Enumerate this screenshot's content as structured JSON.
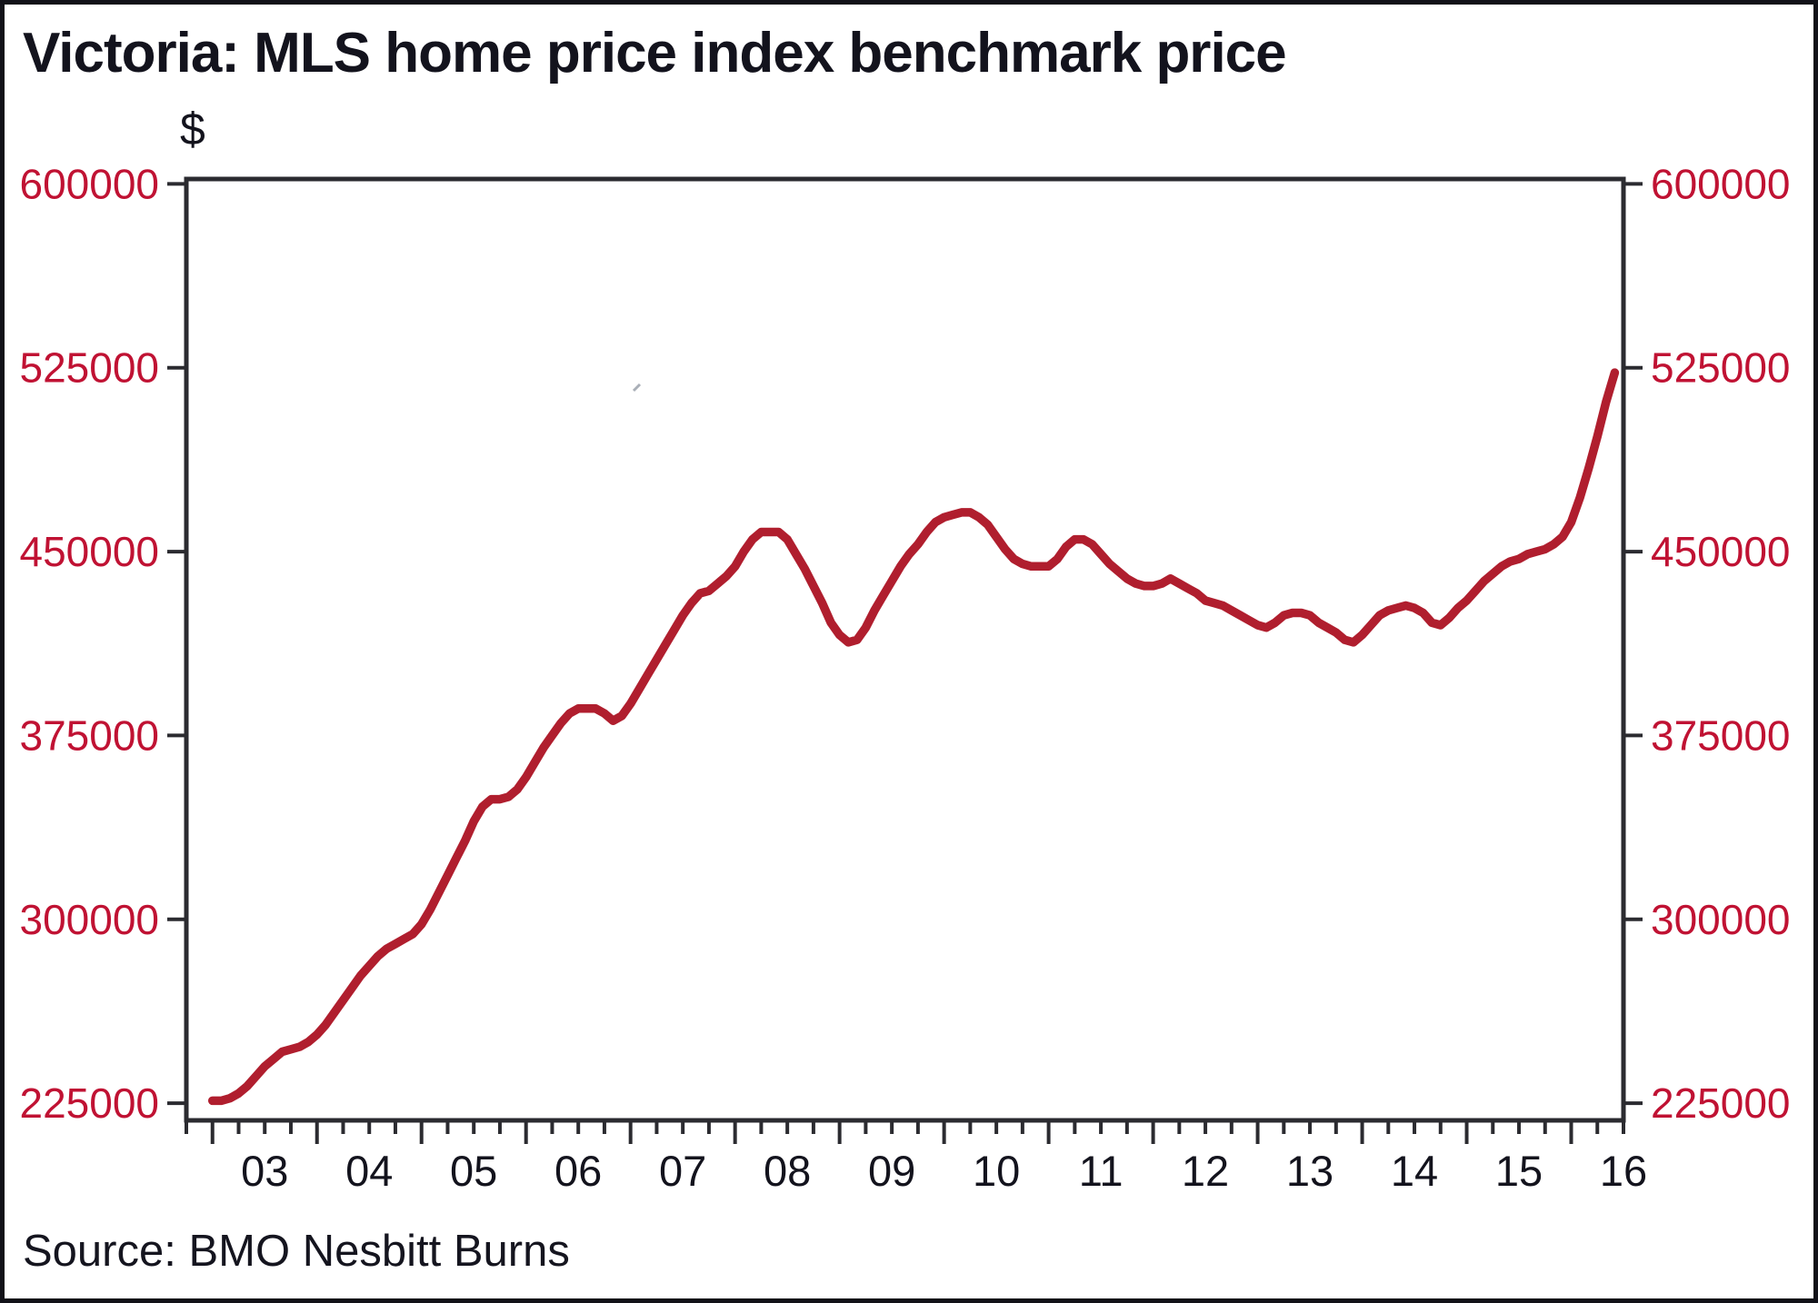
{
  "title": "Victoria: MLS home price index benchmark price",
  "source_line": "Source: BMO Nesbitt Burns",
  "colors": {
    "line": "#b01e2e",
    "axis_label_red": "#c01233",
    "text_dark": "#13131d",
    "frame": "#2b2b30",
    "background": "#ffffff"
  },
  "chart_data": {
    "type": "line",
    "title": "Victoria: MLS home price index benchmark price",
    "unit_label": "$",
    "xlabel": "",
    "ylabel": "$",
    "legend": "none",
    "grid": false,
    "source": "Source: BMO Nesbitt Burns",
    "frequency": "monthly",
    "start": "2003-01",
    "end": "2016-06",
    "x_domain": [
      2002.75,
      2016.5
    ],
    "y_domain": [
      218000,
      602000
    ],
    "y_ticks": [
      225000,
      300000,
      375000,
      450000,
      525000,
      600000
    ],
    "y_tick_labels": [
      "225000",
      "300000",
      "375000",
      "450000",
      "525000",
      "600000"
    ],
    "x_tick_years": [
      2003,
      2004,
      2005,
      2006,
      2007,
      2008,
      2009,
      2010,
      2011,
      2012,
      2013,
      2014,
      2015,
      2016
    ],
    "x_labels": [
      "03",
      "04",
      "05",
      "06",
      "07",
      "08",
      "09",
      "10",
      "11",
      "12",
      "13",
      "14",
      "15",
      "16"
    ],
    "x_minor_tick_step_years": 0.25,
    "values": [
      226000,
      226000,
      227000,
      229000,
      232000,
      236000,
      240000,
      243000,
      246000,
      247000,
      248000,
      250000,
      253000,
      257000,
      262000,
      267000,
      272000,
      277000,
      281000,
      285000,
      288000,
      290000,
      292000,
      294000,
      298000,
      304000,
      311000,
      318000,
      325000,
      332000,
      340000,
      346000,
      349000,
      349000,
      350000,
      353000,
      358000,
      364000,
      370000,
      375000,
      380000,
      384000,
      386000,
      386000,
      386000,
      384000,
      381000,
      383000,
      388000,
      394000,
      400000,
      406000,
      412000,
      418000,
      424000,
      429000,
      433000,
      434000,
      437000,
      440000,
      444000,
      450000,
      455000,
      458000,
      458000,
      458000,
      455000,
      449000,
      443000,
      436000,
      429000,
      421000,
      416000,
      413000,
      414000,
      419000,
      426000,
      432000,
      438000,
      444000,
      449000,
      453000,
      458000,
      462000,
      464000,
      465000,
      466000,
      466000,
      464000,
      461000,
      456000,
      451000,
      447000,
      445000,
      444000,
      444000,
      444000,
      447000,
      452000,
      455000,
      455000,
      453000,
      449000,
      445000,
      442000,
      439000,
      437000,
      436000,
      436000,
      437000,
      439000,
      437000,
      435000,
      433000,
      430000,
      429000,
      428000,
      426000,
      424000,
      422000,
      420000,
      419000,
      421000,
      424000,
      425000,
      425000,
      424000,
      421000,
      419000,
      417000,
      414000,
      413000,
      416000,
      420000,
      424000,
      426000,
      427000,
      428000,
      427000,
      425000,
      421000,
      420000,
      423000,
      427000,
      430000,
      434000,
      438000,
      441000,
      444000,
      446000,
      447000,
      449000,
      450000,
      451000,
      453000,
      456000,
      462000,
      472000,
      484000,
      497000,
      511000,
      523000
    ]
  }
}
